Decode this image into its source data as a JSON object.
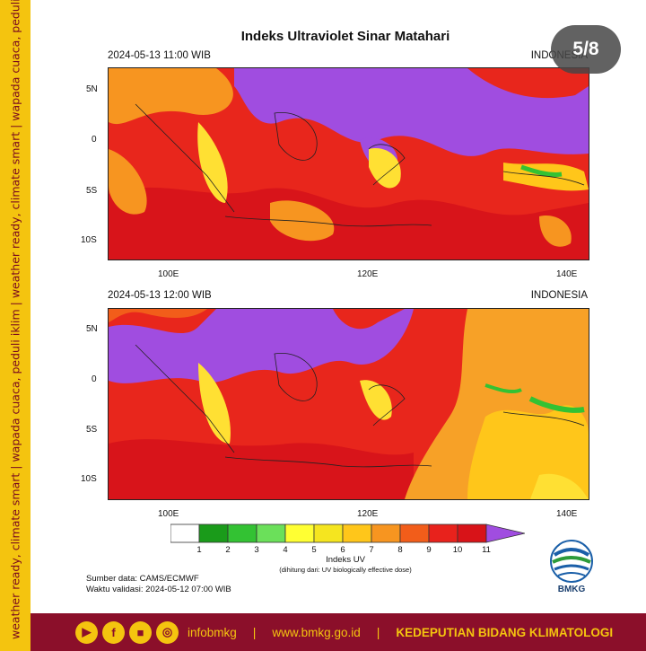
{
  "side_banner": {
    "text": "weather ready, climate smart  |  wapada cuaca, peduli iklim  |  weather ready, climate smart  |  wapada cuaca, peduli iklim"
  },
  "title": "Indeks Ultraviolet Sinar Matahari",
  "page_indicator": "5/8",
  "panels": [
    {
      "date": "2024-05-13  11:00 WIB",
      "region": "INDONESIA"
    },
    {
      "date": "2024-05-13  12:00 WIB",
      "region": "INDONESIA"
    }
  ],
  "axes": {
    "lat_labels": [
      "5N",
      "0",
      "5S",
      "10S"
    ],
    "lon_labels": [
      "100E",
      "120E",
      "140E"
    ]
  },
  "colorbar": {
    "ticks": [
      "1",
      "2",
      "3",
      "4",
      "5",
      "6",
      "7",
      "8",
      "9",
      "10",
      "11"
    ],
    "title": "Indeks UV",
    "subtitle": "(dihitung dari: UV biologically effective dose)",
    "colors": [
      "#ffffff",
      "#1a9b1a",
      "#33c233",
      "#6be05a",
      "#ffff33",
      "#f5e51f",
      "#ffc61a",
      "#f79520",
      "#f25d1a",
      "#e8221c",
      "#d81318",
      "#a04de0"
    ]
  },
  "source": {
    "line1": "Sumber data: CAMS/ECMWF",
    "line2": "Waktu validasi: 2024-05-12 07:00 WIB"
  },
  "logo": {
    "text": "BMKG"
  },
  "footer": {
    "social": [
      "youtube",
      "facebook",
      "video",
      "instagram"
    ],
    "handle": "infobmkg",
    "website": "www.bmkg.go.id",
    "department": "KEDEPUTIAN BIDANG KLIMATOLOGI"
  }
}
